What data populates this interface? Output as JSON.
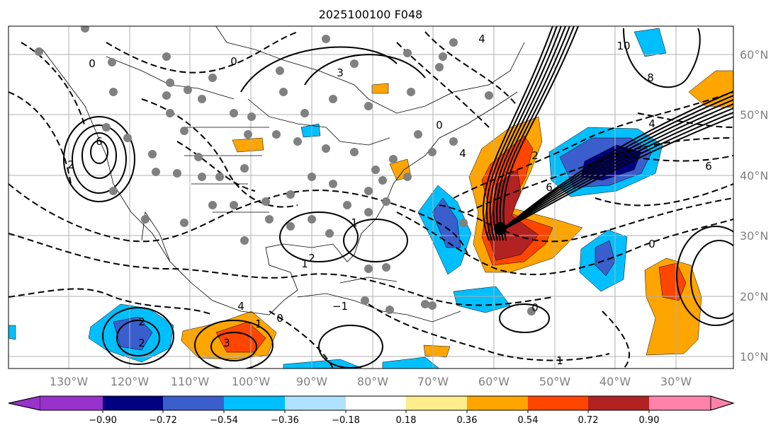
{
  "title": "2025100100 F048",
  "lat_labels": [
    "60°N",
    "50°N",
    "40°N",
    "30°N",
    "20°N",
    "10°N"
  ],
  "lon_labels": [
    "130°W",
    "120°W",
    "110°W",
    "100°W",
    "90°W",
    "80°W",
    "70°W",
    "60°W",
    "50°W",
    "40°W",
    "30°W"
  ],
  "colorbar": {
    "ticks": [
      "−0.90",
      "−0.72",
      "−0.54",
      "−0.36",
      "−0.18",
      "0.18",
      "0.36",
      "0.54",
      "0.72",
      "0.90"
    ],
    "colors": [
      "#9932cc",
      "#000080",
      "#3a5fcd",
      "#00bfff",
      "#b0e2ff",
      "#ffffff",
      "#ffec8b",
      "#ffa500",
      "#ff4500",
      "#b22222",
      "#ff82ab"
    ]
  },
  "contour_labels": [
    "6",
    "2",
    "0",
    "3",
    "0",
    "1",
    "4",
    "6",
    "10",
    "8",
    "4",
    "2",
    "4",
    "6",
    "0",
    "1",
    "2",
    "0",
    "1",
    "3",
    "2",
    "0",
    "−1",
    "2",
    "0",
    "1",
    "4"
  ],
  "colors": {
    "grid": "#b0b0b0",
    "station": "#808080",
    "contour": "#000000"
  }
}
